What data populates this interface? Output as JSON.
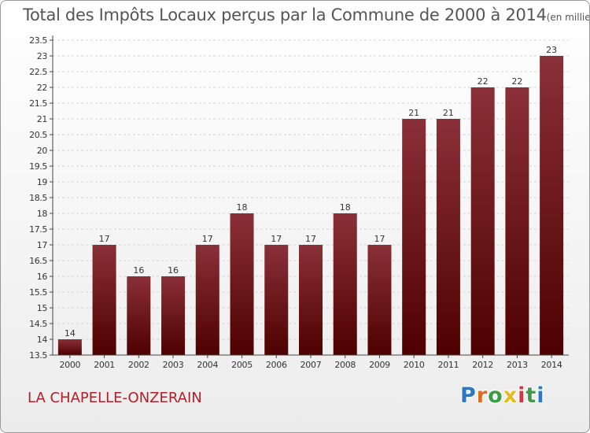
{
  "header": {
    "title": "Total des Impôts Locaux perçus par la Commune de 2000 à 2014",
    "unit": "(en milliers d'€)"
  },
  "footer": {
    "commune": "LA CHAPELLE-ONZERAIN",
    "logo": "Proxiti"
  },
  "colors": {
    "bar_top": "#8a3038",
    "bar_bottom": "#4e0000",
    "commune_text": "#b0202a",
    "title_text": "#555555"
  },
  "chart_data": {
    "type": "bar",
    "title": "Total des Impôts Locaux perçus par la Commune de 2000 à 2014",
    "xlabel": "",
    "ylabel": "",
    "categories": [
      "2000",
      "2001",
      "2002",
      "2003",
      "2004",
      "2005",
      "2006",
      "2007",
      "2008",
      "2009",
      "2010",
      "2011",
      "2012",
      "2013",
      "2014"
    ],
    "values": [
      14,
      17,
      16,
      16,
      17,
      18,
      17,
      17,
      18,
      17,
      21,
      21,
      22,
      22,
      23
    ],
    "value_labels": [
      "14",
      "17",
      "16",
      "16",
      "17",
      "18",
      "17",
      "17",
      "18",
      "17",
      "21",
      "21",
      "22",
      "22",
      "23"
    ],
    "ylim": [
      13.5,
      23.5
    ],
    "yticks": [
      13.5,
      14,
      14.5,
      15,
      15.5,
      16,
      16.5,
      17,
      17.5,
      18,
      18.5,
      19,
      19.5,
      20,
      20.5,
      21,
      21.5,
      22,
      22.5,
      23,
      23.5
    ],
    "ytick_labels": [
      "13.5",
      "14",
      "14.5",
      "15",
      "15.5",
      "16",
      "16.5",
      "17",
      "17.5",
      "18",
      "18.5",
      "19",
      "19.5",
      "20",
      "20.5",
      "21",
      "21.5",
      "22",
      "22.5",
      "23",
      "23.5"
    ],
    "grid": true,
    "legend": "none"
  }
}
